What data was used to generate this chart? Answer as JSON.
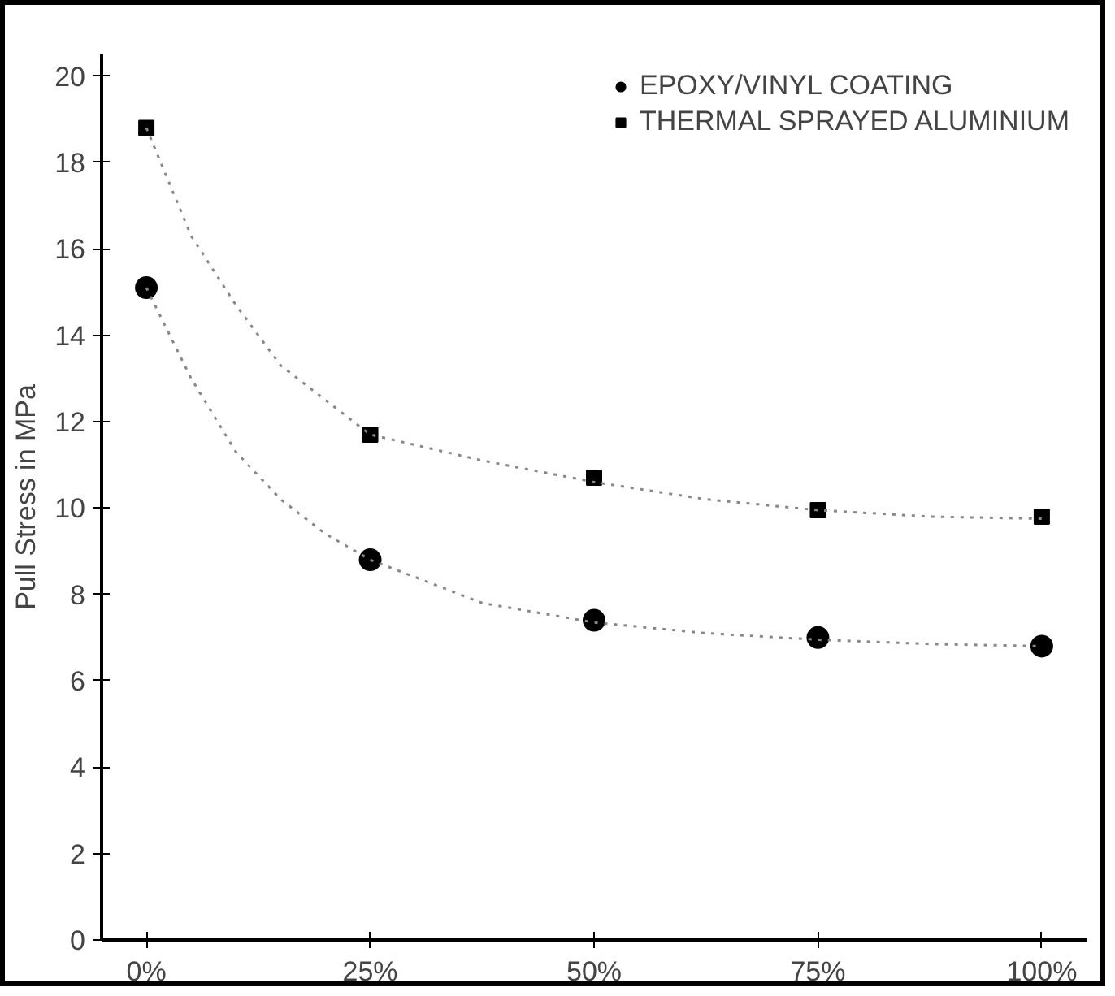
{
  "chart_data": {
    "type": "scatter",
    "ylabel": "Pull Stress in MPa",
    "xlim": [
      -5,
      105
    ],
    "ylim": [
      0,
      20.5
    ],
    "xticks": [
      {
        "value": 0,
        "label": "0%"
      },
      {
        "value": 25,
        "label": "25%"
      },
      {
        "value": 50,
        "label": "50%"
      },
      {
        "value": 75,
        "label": "75%"
      },
      {
        "value": 100,
        "label": "100%"
      }
    ],
    "yticks": [
      0,
      2,
      4,
      6,
      8,
      10,
      12,
      14,
      16,
      18,
      20
    ],
    "grid": false,
    "legend": "top right",
    "x": [
      0,
      25,
      50,
      75,
      100
    ],
    "series": [
      {
        "name": "EPOXY/VINYL COATING",
        "color": "#000000",
        "marker": "circle",
        "values": [
          15.1,
          8.8,
          7.4,
          7.0,
          6.8
        ]
      },
      {
        "name": "THERMAL SPRAYED ALUMINIUM",
        "color": "#000000",
        "marker": "square",
        "values": [
          18.8,
          11.7,
          10.7,
          9.95,
          9.8
        ]
      },
      {
        "type": "line",
        "color": "#888888",
        "line_style": "dotted",
        "x": [
          0,
          5,
          10,
          15,
          20,
          25,
          37.5,
          50,
          62.5,
          75,
          87.5,
          100
        ],
        "values": [
          15.1,
          13.0,
          11.3,
          10.2,
          9.4,
          8.8,
          7.8,
          7.35,
          7.1,
          6.95,
          6.85,
          6.8
        ]
      },
      {
        "type": "line",
        "color": "#888888",
        "line_style": "dotted",
        "x": [
          0,
          5,
          10,
          15,
          20,
          25,
          37.5,
          50,
          62.5,
          75,
          87.5,
          100
        ],
        "values": [
          18.8,
          16.3,
          14.7,
          13.3,
          12.5,
          11.7,
          11.1,
          10.6,
          10.2,
          9.95,
          9.8,
          9.75
        ]
      }
    ]
  }
}
